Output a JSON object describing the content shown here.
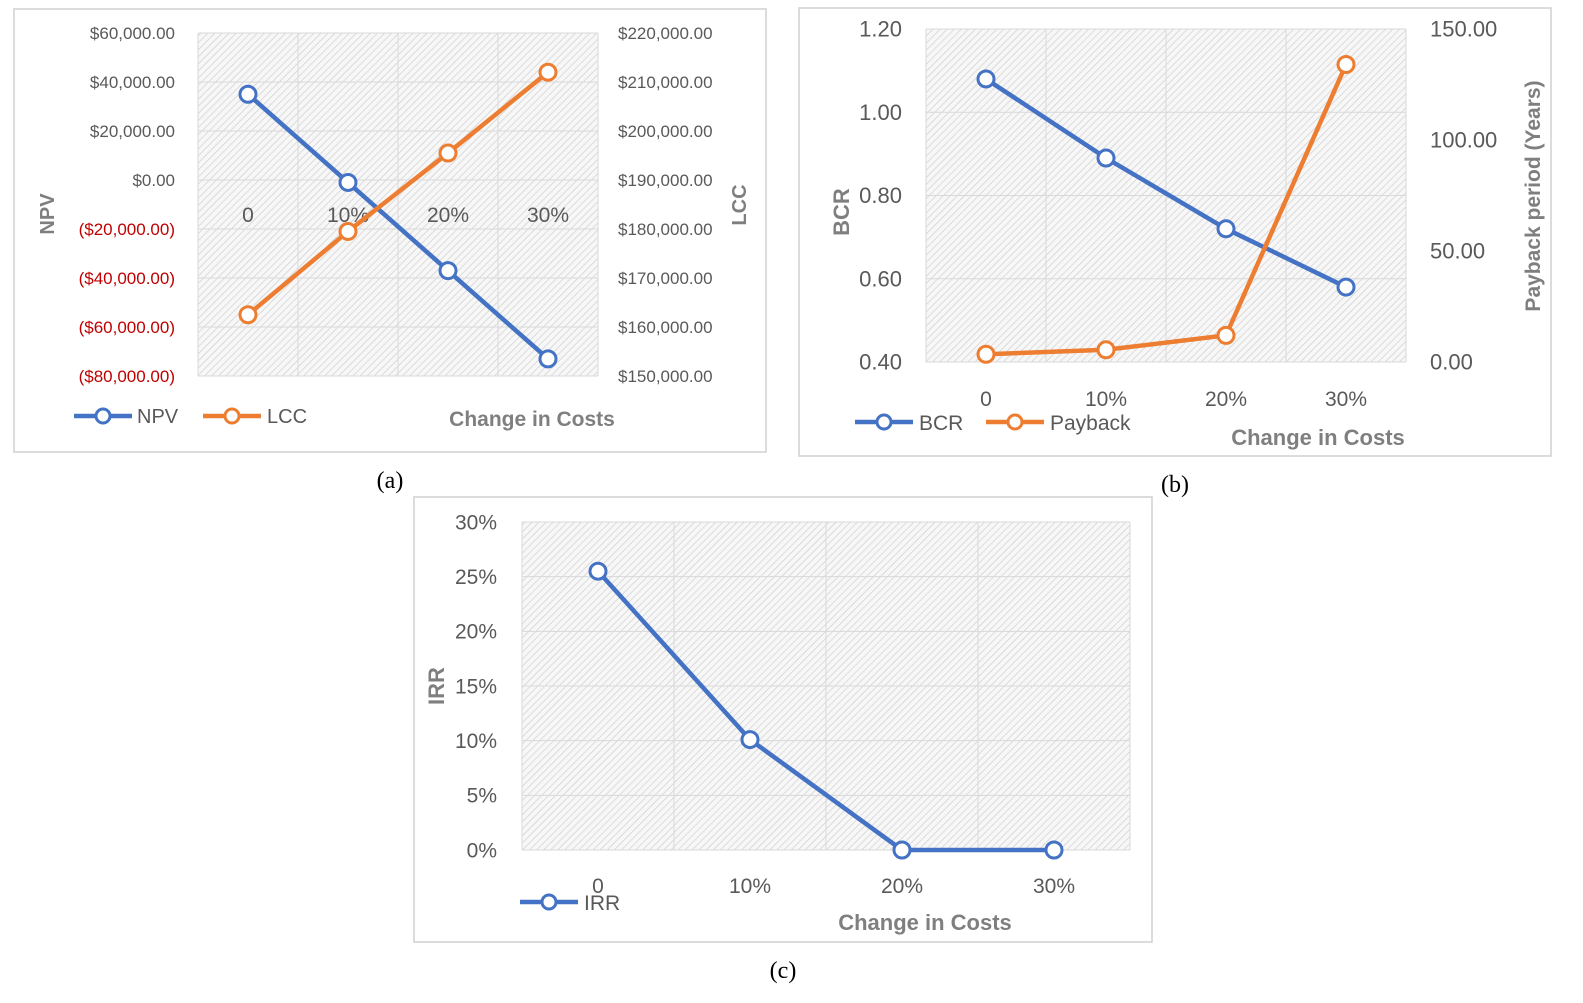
{
  "colors": {
    "blue": "#4472c4",
    "orange": "#ed7d31",
    "negative": "#c00000"
  },
  "captions": {
    "a": "(a)",
    "b": "(b)",
    "c": "(c)"
  },
  "chart_data": [
    {
      "id": "a",
      "type": "line",
      "categories": [
        "0",
        "10%",
        "20%",
        "30%"
      ],
      "xlabel": "Change in Costs",
      "ylabel": "NPV",
      "y2label": "LCC",
      "ylim": [
        -80000,
        60000
      ],
      "y2lim": [
        150000,
        220000
      ],
      "yticks": [
        "$60,000.00",
        "$40,000.00",
        "$20,000.00",
        "$0.00",
        "($20,000.00)",
        "($40,000.00)",
        "($60,000.00)",
        "($80,000.00)"
      ],
      "y2ticks": [
        "$220,000.00",
        "$210,000.00",
        "$200,000.00",
        "$190,000.00",
        "$180,000.00",
        "$170,000.00",
        "$160,000.00",
        "$150,000.00"
      ],
      "series": [
        {
          "name": "NPV",
          "axis": "left",
          "color": "#4472c4",
          "values": [
            35000,
            -1000,
            -37000,
            -73000
          ]
        },
        {
          "name": "LCC",
          "axis": "right",
          "color": "#ed7d31",
          "values": [
            162500,
            179500,
            195500,
            212000
          ]
        }
      ],
      "legend": "bottom-left",
      "grid": true
    },
    {
      "id": "b",
      "type": "line",
      "categories": [
        "0",
        "10%",
        "20%",
        "30%"
      ],
      "xlabel": "Change in Costs",
      "ylabel": "BCR",
      "y2label": "Payback period (Years)",
      "ylim": [
        0.4,
        1.2
      ],
      "y2lim": [
        0,
        150
      ],
      "yticks": [
        "1.20",
        "1.00",
        "0.80",
        "0.60",
        "0.40"
      ],
      "y2ticks": [
        "150.00",
        "100.00",
        "50.00",
        "0.00"
      ],
      "series": [
        {
          "name": "BCR",
          "axis": "left",
          "color": "#4472c4",
          "values": [
            1.08,
            0.89,
            0.72,
            0.58
          ]
        },
        {
          "name": "Payback",
          "axis": "right",
          "color": "#ed7d31",
          "values": [
            3.5,
            5.5,
            12,
            134
          ]
        }
      ],
      "legend": "bottom-left",
      "grid": true
    },
    {
      "id": "c",
      "type": "line",
      "categories": [
        "0",
        "10%",
        "20%",
        "30%"
      ],
      "xlabel": "Change in Costs",
      "ylabel": "IRR",
      "ylim": [
        0,
        0.3
      ],
      "yticks": [
        "30%",
        "25%",
        "20%",
        "15%",
        "10%",
        "5%",
        "0%"
      ],
      "series": [
        {
          "name": "IRR",
          "axis": "left",
          "color": "#4472c4",
          "values": [
            0.255,
            0.101,
            0.0,
            0.0
          ]
        }
      ],
      "legend": "bottom-left",
      "grid": true
    }
  ]
}
